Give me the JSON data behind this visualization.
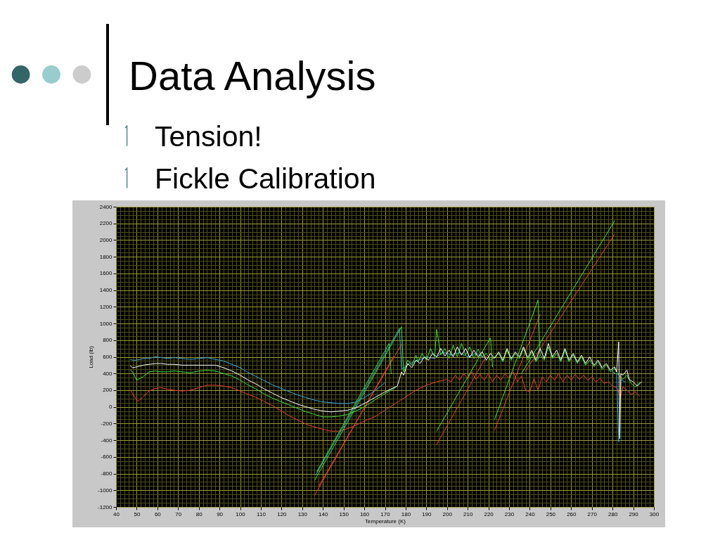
{
  "chart_data": {
    "type": "line",
    "title": "Data Analysis",
    "annotations": [
      "Tension!",
      "Fickle Calibration"
    ],
    "xlabel": "Temperature (K)",
    "ylabel": "Load (lb)",
    "xlim": [
      40,
      300
    ],
    "ylim": [
      -1200,
      2400
    ],
    "xticks": [
      40,
      {
        "value": 42,
        "label": null
      },
      {
        "value": 44,
        "label": null
      },
      {
        "value": 46,
        "label": null
      },
      {
        "value": 48,
        "label": null
      },
      50,
      {
        "value": 52,
        "label": null
      },
      {
        "value": 54,
        "label": null
      },
      {
        "value": 56,
        "label": null
      },
      {
        "value": 58,
        "label": null
      },
      60,
      {
        "value": 62,
        "label": null
      },
      {
        "value": 64,
        "label": null
      },
      {
        "value": 66,
        "label": null
      },
      {
        "value": 68,
        "label": null
      },
      70,
      {
        "value": 72,
        "label": null
      },
      {
        "value": 74,
        "label": null
      },
      {
        "value": 76,
        "label": null
      },
      {
        "value": 78,
        "label": null
      },
      80,
      {
        "value": 82,
        "label": null
      },
      {
        "value": 84,
        "label": null
      },
      {
        "value": 86,
        "label": null
      },
      {
        "value": 88,
        "label": null
      },
      90,
      {
        "value": 92,
        "label": null
      },
      {
        "value": 94,
        "label": null
      },
      {
        "value": 96,
        "label": null
      },
      {
        "value": 98,
        "label": null
      },
      100,
      {
        "value": 102,
        "label": null
      },
      {
        "value": 104,
        "label": null
      },
      {
        "value": 106,
        "label": null
      },
      {
        "value": 108,
        "label": null
      },
      110,
      {
        "value": 112,
        "label": null
      },
      {
        "value": 114,
        "label": null
      },
      {
        "value": 116,
        "label": null
      },
      {
        "value": 118,
        "label": null
      },
      120,
      {
        "value": 122,
        "label": null
      },
      {
        "value": 124,
        "label": null
      },
      {
        "value": 126,
        "label": null
      },
      {
        "value": 128,
        "label": null
      },
      130,
      {
        "value": 132,
        "label": null
      },
      {
        "value": 134,
        "label": null
      },
      {
        "value": 136,
        "label": null
      },
      {
        "value": 138,
        "label": null
      },
      140,
      {
        "value": 142,
        "label": null
      },
      {
        "value": 144,
        "label": null
      },
      {
        "value": 146,
        "label": null
      },
      {
        "value": 148,
        "label": null
      },
      150,
      {
        "value": 152,
        "label": null
      },
      {
        "value": 154,
        "label": null
      },
      {
        "value": 156,
        "label": null
      },
      {
        "value": 158,
        "label": null
      },
      160,
      {
        "value": 162,
        "label": null
      },
      {
        "value": 164,
        "label": null
      },
      {
        "value": 166,
        "label": null
      },
      {
        "value": 168,
        "label": null
      },
      170,
      {
        "value": 172,
        "label": null
      },
      {
        "value": 174,
        "label": null
      },
      {
        "value": 176,
        "label": null
      },
      {
        "value": 178,
        "label": null
      },
      180,
      {
        "value": 182,
        "label": null
      },
      {
        "value": 184,
        "label": null
      },
      {
        "value": 186,
        "label": null
      },
      {
        "value": 188,
        "label": null
      },
      190,
      {
        "value": 192,
        "label": null
      },
      {
        "value": 194,
        "label": null
      },
      {
        "value": 196,
        "label": null
      },
      {
        "value": 198,
        "label": null
      },
      200,
      {
        "value": 202,
        "label": null
      },
      {
        "value": 204,
        "label": null
      },
      {
        "value": 206,
        "label": null
      },
      {
        "value": 208,
        "label": null
      },
      210,
      {
        "value": 212,
        "label": null
      },
      {
        "value": 214,
        "label": null
      },
      {
        "value": 216,
        "label": null
      },
      {
        "value": 218,
        "label": null
      },
      220,
      {
        "value": 222,
        "label": null
      },
      {
        "value": 224,
        "label": null
      },
      {
        "value": 226,
        "label": null
      },
      {
        "value": 228,
        "label": null
      },
      230,
      {
        "value": 232,
        "label": null
      },
      {
        "value": 234,
        "label": null
      },
      {
        "value": 236,
        "label": null
      },
      {
        "value": 238,
        "label": null
      },
      240,
      {
        "value": 242,
        "label": null
      },
      {
        "value": 244,
        "label": null
      },
      {
        "value": 246,
        "label": null
      },
      {
        "value": 248,
        "label": null
      },
      250,
      {
        "value": 252,
        "label": null
      },
      {
        "value": 254,
        "label": null
      },
      {
        "value": 256,
        "label": null
      },
      {
        "value": 258,
        "label": null
      },
      260,
      {
        "value": 262,
        "label": null
      },
      {
        "value": 264,
        "label": null
      },
      {
        "value": 266,
        "label": null
      },
      {
        "value": 268,
        "label": null
      },
      270,
      {
        "value": 272,
        "label": null
      },
      {
        "value": 274,
        "label": null
      },
      {
        "value": 276,
        "label": null
      },
      {
        "value": 278,
        "label": null
      },
      280,
      {
        "value": 282,
        "label": null
      },
      {
        "value": 284,
        "label": null
      },
      {
        "value": 286,
        "label": null
      },
      {
        "value": 288,
        "label": null
      },
      290,
      {
        "value": 292,
        "label": null
      },
      {
        "value": 294,
        "label": null
      },
      {
        "value": 296,
        "label": null
      },
      {
        "value": 298,
        "label": null
      },
      300
    ],
    "yticks": [
      -1200,
      {
        "value": -1150,
        "label": null
      },
      {
        "value": -1100,
        "label": null
      },
      {
        "value": -1050,
        "label": null
      },
      -1000,
      {
        "value": -950,
        "label": null
      },
      {
        "value": -900,
        "label": null
      },
      {
        "value": -850,
        "label": null
      },
      -800,
      {
        "value": -750,
        "label": null
      },
      {
        "value": -700,
        "label": null
      },
      {
        "value": -650,
        "label": null
      },
      -600,
      {
        "value": -550,
        "label": null
      },
      {
        "value": -500,
        "label": null
      },
      {
        "value": -450,
        "label": null
      },
      -400,
      {
        "value": -350,
        "label": null
      },
      {
        "value": -300,
        "label": null
      },
      {
        "value": -250,
        "label": null
      },
      -200,
      {
        "value": -150,
        "label": null
      },
      {
        "value": -100,
        "label": null
      },
      {
        "value": -50,
        "label": null
      },
      0,
      {
        "value": 50,
        "label": null
      },
      {
        "value": 100,
        "label": null
      },
      {
        "value": 150,
        "label": null
      },
      200,
      {
        "value": 250,
        "label": null
      },
      {
        "value": 300,
        "label": null
      },
      {
        "value": 350,
        "label": null
      },
      400,
      {
        "value": 450,
        "label": null
      },
      {
        "value": 500,
        "label": null
      },
      {
        "value": 550,
        "label": null
      },
      600,
      {
        "value": 650,
        "label": null
      },
      {
        "value": 700,
        "label": null
      },
      {
        "value": 750,
        "label": null
      },
      800,
      {
        "value": 850,
        "label": null
      },
      {
        "value": 900,
        "label": null
      },
      {
        "value": 950,
        "label": null
      },
      1000,
      {
        "value": 1050,
        "label": null
      },
      {
        "value": 1100,
        "label": null
      },
      {
        "value": 1150,
        "label": null
      },
      1200,
      {
        "value": 1250,
        "label": null
      },
      {
        "value": 1300,
        "label": null
      },
      {
        "value": 1350,
        "label": null
      },
      1400,
      {
        "value": 1450,
        "label": null
      },
      {
        "value": 1500,
        "label": null
      },
      {
        "value": 1550,
        "label": null
      },
      1600,
      {
        "value": 1650,
        "label": null
      },
      {
        "value": 1700,
        "label": null
      },
      {
        "value": 1750,
        "label": null
      },
      1800,
      {
        "value": 1850,
        "label": null
      },
      {
        "value": 1900,
        "label": null
      },
      {
        "value": 1950,
        "label": null
      },
      2000,
      {
        "value": 2050,
        "label": null
      },
      {
        "value": 2100,
        "label": null
      },
      {
        "value": 2150,
        "label": null
      },
      2200,
      {
        "value": 2250,
        "label": null
      },
      {
        "value": 2300,
        "label": null
      },
      {
        "value": 2350,
        "label": null
      },
      2400
    ],
    "grid": true,
    "series": [
      {
        "color": "#e8402c",
        "x": [
          47,
          48,
          50,
          51,
          53,
          56,
          59,
          62,
          65,
          68,
          72,
          76,
          80,
          84,
          88,
          92,
          96,
          100,
          104,
          108,
          112,
          116,
          120,
          124,
          128,
          132,
          136,
          140,
          144,
          148,
          152,
          156,
          160,
          165,
          170,
          175,
          180,
          185,
          190,
          195,
          200,
          202,
          204,
          206,
          208,
          210,
          212,
          214,
          216,
          218,
          220,
          222,
          224,
          226,
          228,
          230,
          232,
          234,
          236,
          238,
          240,
          242,
          244,
          246,
          248,
          250,
          252,
          254,
          256,
          258,
          260,
          262,
          264,
          266,
          268,
          270,
          272,
          274,
          276,
          278,
          280,
          282,
          284,
          285,
          287,
          289,
          291,
          293,
          null,
          136,
          174,
          null,
          138,
          178,
          null,
          195,
          219,
          null,
          223,
          245,
          null,
          238,
          281
        ],
        "values": [
          200,
          160,
          80,
          70,
          120,
          190,
          220,
          230,
          210,
          200,
          190,
          200,
          230,
          260,
          260,
          250,
          230,
          190,
          150,
          110,
          60,
          10,
          -50,
          -110,
          -160,
          -210,
          -240,
          -270,
          -290,
          -290,
          -260,
          -220,
          -170,
          -120,
          -40,
          40,
          120,
          200,
          260,
          300,
          330,
          300,
          380,
          320,
          400,
          340,
          420,
          330,
          390,
          320,
          400,
          300,
          380,
          320,
          400,
          340,
          420,
          300,
          370,
          200,
          180,
          340,
          200,
          360,
          300,
          380,
          320,
          400,
          300,
          380,
          320,
          390,
          330,
          380,
          320,
          360,
          300,
          340,
          280,
          300,
          250,
          230,
          120,
          240,
          200,
          150,
          180,
          130,
          null,
          -1060,
          600,
          null,
          -950,
          750,
          null,
          -450,
          610,
          null,
          -280,
          1110,
          null,
          430,
          2070
        ]
      },
      {
        "color": "#3fa6d6",
        "x": [
          47,
          48,
          50,
          53,
          56,
          59,
          62,
          65,
          68,
          72,
          76,
          80,
          84,
          88,
          92,
          96,
          100,
          104,
          108,
          112,
          116,
          120,
          124,
          128,
          132,
          136,
          140,
          144,
          148,
          152,
          156,
          160,
          165,
          170,
          null,
          136.5,
          177,
          178,
          182,
          186,
          190,
          194,
          198,
          202,
          206,
          210,
          214,
          218,
          null,
          280,
          282,
          283,
          284,
          286
        ],
        "values": [
          570,
          560,
          560,
          580,
          580,
          600,
          590,
          580,
          590,
          580,
          570,
          580,
          590,
          570,
          550,
          510,
          470,
          410,
          360,
          310,
          260,
          220,
          180,
          140,
          110,
          80,
          60,
          50,
          40,
          40,
          60,
          110,
          190,
          290,
          null,
          -820,
          940,
          450,
          520,
          560,
          600,
          580,
          660,
          620,
          650,
          600,
          640,
          590,
          null,
          420,
          390,
          -420,
          330,
          300
        ]
      },
      {
        "color": "#3ee03a",
        "x": [
          47,
          48,
          50,
          53,
          56,
          59,
          62,
          65,
          68,
          72,
          76,
          80,
          84,
          88,
          92,
          96,
          100,
          104,
          108,
          112,
          116,
          120,
          124,
          128,
          132,
          136,
          140,
          144,
          148,
          152,
          156,
          160,
          165,
          170,
          175,
          null,
          136,
          178,
          179,
          181,
          183,
          185,
          186,
          188,
          190,
          192,
          194,
          195,
          197,
          199,
          201,
          203,
          205,
          207,
          209,
          211,
          213,
          215,
          217,
          219,
          221,
          225,
          227,
          229,
          231,
          233,
          235,
          237,
          239,
          241,
          243,
          245,
          247,
          249,
          251,
          253,
          255,
          257,
          259,
          261,
          263,
          265,
          267,
          269,
          271,
          273,
          275,
          277,
          279,
          281,
          283,
          285,
          287,
          289,
          291,
          293,
          null,
          195,
          221,
          222,
          null,
          223,
          244,
          245,
          null,
          236,
          251,
          281,
          null,
          137,
          172,
          173
        ],
        "values": [
          440,
          420,
          320,
          360,
          420,
          430,
          420,
          420,
          430,
          420,
          410,
          430,
          440,
          430,
          400,
          370,
          320,
          260,
          210,
          150,
          100,
          60,
          20,
          -20,
          -60,
          -90,
          -120,
          -120,
          -110,
          -90,
          -50,
          0,
          80,
          160,
          230,
          null,
          -880,
          960,
          420,
          560,
          500,
          620,
          540,
          640,
          560,
          700,
          600,
          930,
          620,
          700,
          580,
          740,
          600,
          760,
          620,
          720,
          580,
          690,
          600,
          640,
          560,
          640,
          540,
          680,
          560,
          640,
          580,
          700,
          560,
          660,
          540,
          620,
          560,
          720,
          580,
          640,
          540,
          680,
          540,
          620,
          520,
          600,
          500,
          560,
          480,
          540,
          450,
          500,
          420,
          460,
          380,
          330,
          380,
          280,
          240,
          290,
          null,
          -290,
          830,
          480,
          null,
          -150,
          1280,
          620,
          null,
          400,
          1010,
          2230,
          null,
          -780,
          760,
          400
        ]
      },
      {
        "color": "#ffffff",
        "x": [
          47,
          48,
          50,
          53,
          56,
          59,
          62,
          65,
          68,
          72,
          76,
          80,
          84,
          88,
          92,
          96,
          100,
          104,
          108,
          112,
          116,
          120,
          124,
          128,
          132,
          136,
          140,
          144,
          148,
          152,
          156,
          160,
          165,
          170,
          175,
          176,
          178,
          179,
          181,
          183,
          185,
          187,
          189,
          191,
          193,
          195,
          197,
          199,
          201,
          203,
          205,
          207,
          209,
          211,
          213,
          215,
          217,
          219,
          221,
          223,
          225,
          227,
          229,
          231,
          233,
          235,
          237,
          239,
          241,
          243,
          245,
          247,
          249,
          251,
          253,
          255,
          257,
          259,
          261,
          263,
          265,
          267,
          269,
          271,
          273,
          275,
          277,
          279,
          281,
          282,
          283,
          283.5,
          284,
          285,
          287,
          288,
          290,
          292,
          294
        ],
        "values": [
          490,
          470,
          480,
          500,
          510,
          520,
          520,
          510,
          510,
          500,
          500,
          500,
          500,
          500,
          470,
          430,
          380,
          320,
          270,
          210,
          160,
          110,
          70,
          30,
          0,
          -30,
          -50,
          -60,
          -50,
          -40,
          -10,
          40,
          110,
          180,
          240,
          250,
          420,
          380,
          520,
          470,
          560,
          520,
          600,
          560,
          640,
          600,
          700,
          610,
          680,
          600,
          720,
          620,
          700,
          590,
          680,
          600,
          660,
          560,
          640,
          580,
          660,
          560,
          700,
          580,
          660,
          600,
          720,
          590,
          680,
          560,
          700,
          580,
          760,
          600,
          680,
          560,
          700,
          560,
          640,
          540,
          620,
          520,
          600,
          500,
          560,
          470,
          520,
          440,
          480,
          420,
          780,
          -380,
          400,
          380,
          440,
          330,
          300,
          250,
          300
        ]
      }
    ]
  }
}
